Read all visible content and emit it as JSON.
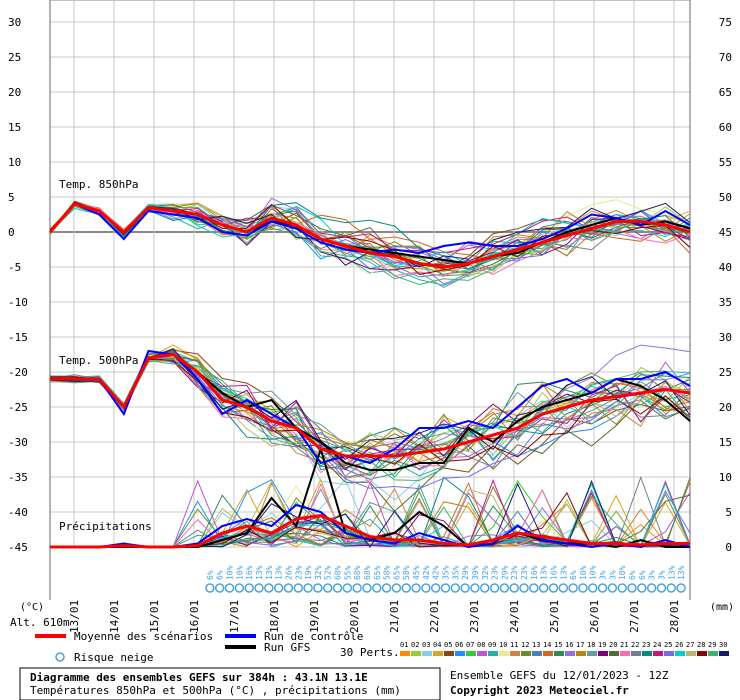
{
  "chart_data": {
    "type": "line",
    "title": "Diagramme des ensembles GEFS sur 384h : 43.1N 13.1E",
    "subtitle": "Températures 850hPa et 500hPa (°C) , précipitations (mm)",
    "run_info": "Ensemble GEFS du 12/01/2023 - 12Z",
    "copyright": "Copyright 2023 Meteociel.fr",
    "altitude": "Alt. 610m",
    "left_unit": "(°C)",
    "right_unit": "(mm)",
    "left_ticks": [
      "30",
      "25",
      "20",
      "15",
      "10",
      "5",
      "0",
      "-5",
      "-10",
      "-15",
      "-20",
      "-25",
      "-30",
      "-35",
      "-40",
      "-45"
    ],
    "right_ticks": [
      "75",
      "70",
      "65",
      "60",
      "55",
      "50",
      "45",
      "40",
      "35",
      "30",
      "25",
      "20",
      "15",
      "10",
      "5",
      "0"
    ],
    "x_dates": [
      "13/01",
      "14/01",
      "15/01",
      "16/01",
      "17/01",
      "18/01",
      "19/01",
      "20/01",
      "21/01",
      "22/01",
      "23/01",
      "24/01",
      "25/01",
      "26/01",
      "27/01",
      "28/01"
    ],
    "ylim": [
      -45,
      30
    ],
    "labels": {
      "t850": "Temp. 850hPa",
      "t500": "Temp. 500hPa",
      "precip": "Précipitations"
    },
    "snow_risk": [
      "6%",
      "6%",
      "10%",
      "10%",
      "16%",
      "13%",
      "13%",
      "13%",
      "26%",
      "23%",
      "19%",
      "32%",
      "52%",
      "68%",
      "55%",
      "68%",
      "68%",
      "65%",
      "58%",
      "65%",
      "58%",
      "45%",
      "42%",
      "42%",
      "35%",
      "35%",
      "29%",
      "39%",
      "32%",
      "23%",
      "29%",
      "23%",
      "23%",
      "16%",
      "13%",
      "16%",
      "13%",
      "6%",
      "10%",
      "10%",
      "3%",
      "3%",
      "10%",
      "6%",
      "6%",
      "3%",
      "3%",
      "13%",
      "13%"
    ],
    "legend": {
      "mean": "Moyenne des scénarios",
      "control": "Run de contrôle",
      "gfs": "Run GFS",
      "snow": "Risque neige",
      "perts": "30 Perts."
    },
    "pert_labels": [
      "01",
      "02",
      "03",
      "04",
      "05",
      "06",
      "07",
      "08",
      "09",
      "10",
      "11",
      "12",
      "13",
      "14",
      "15",
      "16",
      "17",
      "18",
      "19",
      "20",
      "21",
      "22",
      "23",
      "24",
      "25",
      "26",
      "27",
      "28",
      "29",
      "30"
    ],
    "pert_colors": [
      "#ff8c00",
      "#9acd32",
      "#87ceeb",
      "#daa520",
      "#8b4513",
      "#1e90ff",
      "#32cd32",
      "#ba55d3",
      "#20b2aa",
      "#f0e68c",
      "#cd853f",
      "#6b8e23",
      "#4682b4",
      "#d2691e",
      "#2e8b57",
      "#9370db",
      "#b8860b",
      "#5f9ea0",
      "#800080",
      "#556b2f",
      "#ff69b4",
      "#708090",
      "#008b8b",
      "#c71585",
      "#7b68ee",
      "#00ced1",
      "#bdb76b",
      "#8b0000",
      "#3cb371",
      "#191970"
    ],
    "colors": {
      "mean": "#ff0000",
      "control": "#0000ff",
      "gfs": "#000000",
      "snow": "#4aa3df"
    },
    "series": [
      {
        "name": "Moyenne des scénarios",
        "t850": [
          0,
          4,
          3,
          0,
          3.5,
          3,
          2.5,
          1,
          0,
          2,
          1,
          -1,
          -2,
          -3,
          -3.5,
          -4.5,
          -5,
          -4.5,
          -3.5,
          -2.5,
          -1.5,
          -0.5,
          0.5,
          1.5,
          1.5,
          1,
          0
        ],
        "t500": [
          -21,
          -21,
          -21,
          -25,
          -18,
          -17.5,
          -20,
          -24,
          -25,
          -27,
          -28,
          -31,
          -32,
          -32,
          -32,
          -31.5,
          -31,
          -30,
          -29,
          -28,
          -26,
          -25,
          -24,
          -23.5,
          -23,
          -22.5,
          -23
        ],
        "precip": [
          0,
          0,
          0,
          0.2,
          0,
          0,
          0.2,
          2,
          3,
          2,
          4,
          4.5,
          3,
          1.5,
          1,
          1,
          0.5,
          0.3,
          1,
          2,
          1.5,
          1,
          0.5,
          0.5,
          0.3,
          0.5,
          0.5
        ]
      },
      {
        "name": "Run de contrôle",
        "t850": [
          0,
          4,
          2.5,
          -1,
          3,
          2.5,
          2,
          0,
          -0.5,
          1.5,
          0.5,
          -1.5,
          -2.5,
          -3,
          -2.5,
          -3,
          -2,
          -1.5,
          -2,
          -2,
          -1,
          0.5,
          2.5,
          2,
          1,
          3,
          1
        ],
        "t500": [
          -21,
          -21,
          -21,
          -26,
          -17,
          -17.5,
          -21,
          -26,
          -24,
          -26,
          -28,
          -33,
          -32,
          -33,
          -31,
          -28,
          -28,
          -27,
          -28,
          -25,
          -22,
          -21,
          -23,
          -21,
          -21,
          -20,
          -22
        ],
        "precip": [
          0,
          0,
          0,
          0.5,
          0,
          0,
          0.5,
          3,
          4,
          3,
          6,
          5,
          2,
          1,
          0.5,
          2,
          1,
          0,
          0.5,
          3,
          1,
          0.5,
          0,
          0.5,
          0,
          1,
          0
        ]
      },
      {
        "name": "Run GFS",
        "t850": [
          0,
          4,
          3,
          0,
          3.5,
          3,
          2.5,
          1,
          0,
          1.5,
          1,
          -1,
          -2,
          -2.5,
          -3,
          -3.5,
          -4,
          -4.5,
          -3.5,
          -3,
          -1.5,
          0,
          1,
          2,
          1,
          1.5,
          0.5
        ],
        "t500": [
          -21,
          -21,
          -21,
          -25,
          -18,
          -17.5,
          -20,
          -23,
          -25,
          -24,
          -28,
          -30,
          -33,
          -34,
          -34,
          -33,
          -33,
          -28,
          -30,
          -27,
          -25,
          -24,
          -23,
          -21,
          -22,
          -24,
          -27
        ],
        "precip": [
          0,
          0,
          0,
          0,
          0,
          0,
          0,
          1,
          2,
          7,
          3,
          14,
          2,
          1,
          2,
          5,
          3,
          0,
          1,
          2,
          1,
          0.5,
          0.5,
          0,
          1,
          0,
          0
        ]
      }
    ]
  }
}
